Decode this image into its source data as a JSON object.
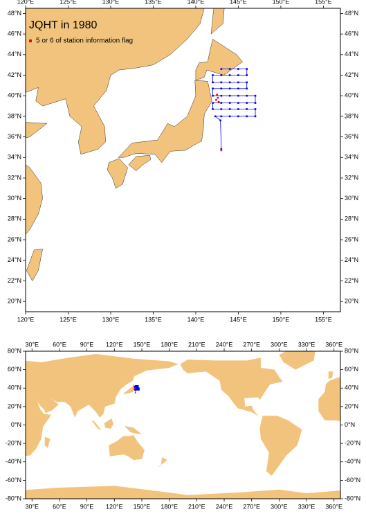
{
  "title": "JQHT in 1980",
  "regional_map": {
    "xlim": [
      120,
      157
    ],
    "ylim": [
      19,
      48.5
    ],
    "xticks": [
      {
        "value": 120,
        "label": "120°E"
      },
      {
        "value": 125,
        "label": "125°E"
      },
      {
        "value": 130,
        "label": "130°E"
      },
      {
        "value": 135,
        "label": "135°E"
      },
      {
        "value": 140,
        "label": "140°E"
      },
      {
        "value": 145,
        "label": "145°E"
      },
      {
        "value": 150,
        "label": "150°E"
      },
      {
        "value": 155,
        "label": "155°E"
      }
    ],
    "yticks": [
      {
        "value": 20,
        "label": "20°N"
      },
      {
        "value": 22,
        "label": "22°N"
      },
      {
        "value": 24,
        "label": "24°N"
      },
      {
        "value": 26,
        "label": "26°N"
      },
      {
        "value": 28,
        "label": "28°N"
      },
      {
        "value": 30,
        "label": "30°N"
      },
      {
        "value": 32,
        "label": "32°N"
      },
      {
        "value": 34,
        "label": "34°N"
      },
      {
        "value": 36,
        "label": "36°N"
      },
      {
        "value": 38,
        "label": "38°N"
      },
      {
        "value": 40,
        "label": "40°N"
      },
      {
        "value": 42,
        "label": "42°N"
      },
      {
        "value": 44,
        "label": "44°N"
      },
      {
        "value": 46,
        "label": "46°N"
      },
      {
        "value": 48,
        "label": "48°N"
      }
    ],
    "stations": {
      "color": "#0000ff",
      "x": [
        143.0,
        142.9,
        142.3,
        143,
        144,
        145,
        146,
        147,
        147,
        146,
        145,
        144,
        143,
        142,
        142,
        143,
        144,
        145,
        146,
        147,
        147,
        146,
        145,
        144,
        143,
        142,
        142,
        143,
        144,
        145,
        146,
        146,
        145,
        144,
        143,
        142,
        142,
        143,
        144,
        145,
        146,
        146,
        145,
        144,
        143
      ],
      "y": [
        34.8,
        37.6,
        38.0,
        38,
        38,
        38,
        38,
        38,
        38.7,
        38.7,
        38.7,
        38.7,
        38.7,
        38.7,
        39.3,
        39.3,
        39.3,
        39.3,
        39.3,
        39.3,
        40,
        40,
        40,
        40,
        40,
        40,
        40.7,
        40.7,
        40.7,
        40.7,
        40.7,
        41.3,
        41.3,
        41.3,
        41.3,
        41.3,
        42,
        42,
        42,
        42,
        42,
        42.6,
        42.6,
        42.6,
        42.6
      ]
    },
    "flagged": {
      "name": "5 or 6 of station information flag",
      "color": "#ff0000",
      "x": [
        143.0,
        142.7,
        142.4,
        142.6,
        142.5
      ],
      "y": [
        34.7,
        39.4,
        39.6,
        39.8,
        40.1
      ]
    }
  },
  "global_map": {
    "xlim": [
      23,
      367
    ],
    "ylim": [
      -80,
      80
    ],
    "xticks": [
      {
        "value": 30,
        "label": "30°E"
      },
      {
        "value": 60,
        "label": "60°E"
      },
      {
        "value": 90,
        "label": "90°E"
      },
      {
        "value": 120,
        "label": "120°E"
      },
      {
        "value": 150,
        "label": "150°E"
      },
      {
        "value": 180,
        "label": "180°E"
      },
      {
        "value": 210,
        "label": "210°E"
      },
      {
        "value": 240,
        "label": "240°E"
      },
      {
        "value": 270,
        "label": "270°E"
      },
      {
        "value": 300,
        "label": "300°E"
      },
      {
        "value": 330,
        "label": "330°E"
      },
      {
        "value": 360,
        "label": "360°E"
      }
    ],
    "yticks": [
      {
        "value": 80,
        "label": "80°N"
      },
      {
        "value": 60,
        "label": "60°N"
      },
      {
        "value": 40,
        "label": "40°N"
      },
      {
        "value": 20,
        "label": "20°N"
      },
      {
        "value": 0,
        "label": "0°N"
      },
      {
        "value": -20,
        "label": "-20°N"
      },
      {
        "value": -40,
        "label": "-40°N"
      },
      {
        "value": -60,
        "label": "-60°N"
      },
      {
        "value": -80,
        "label": "-80°N"
      }
    ]
  }
}
